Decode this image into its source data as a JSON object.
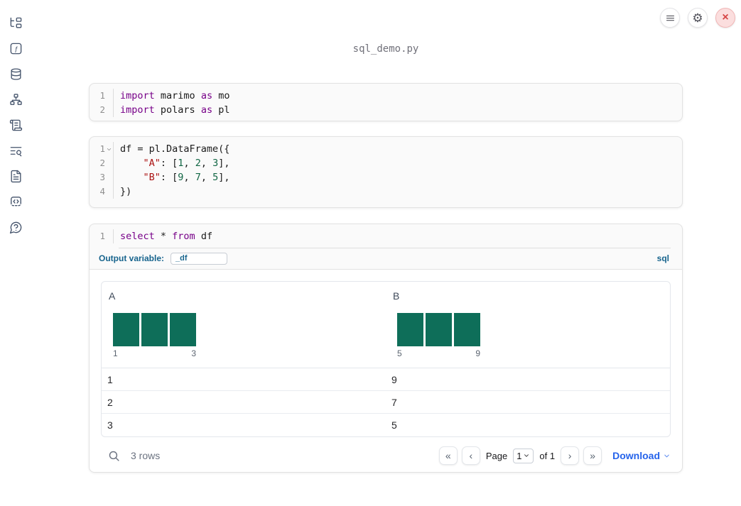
{
  "notebook": {
    "filename": "sql_demo.py"
  },
  "topbar": {
    "buttons": [
      {
        "name": "menu",
        "icon": "menu-icon"
      },
      {
        "name": "settings",
        "icon": "gear-icon"
      },
      {
        "name": "shutdown",
        "icon": "close-icon"
      }
    ]
  },
  "sidebar": {
    "items": [
      {
        "name": "file-explorer",
        "icon": "file-tree-icon"
      },
      {
        "name": "variables",
        "icon": "function-square-icon"
      },
      {
        "name": "data-sources",
        "icon": "database-icon"
      },
      {
        "name": "dependencies",
        "icon": "network-icon"
      },
      {
        "name": "scratchpad",
        "icon": "scroll-text-icon"
      },
      {
        "name": "logs",
        "icon": "text-search-icon"
      },
      {
        "name": "documentation",
        "icon": "file-text-icon"
      },
      {
        "name": "snippets",
        "icon": "code-box-icon"
      },
      {
        "name": "help",
        "icon": "help-bubble-icon"
      }
    ]
  },
  "cells": [
    {
      "type": "python",
      "gutter": [
        "1",
        "2"
      ],
      "fold_lines": [],
      "lines": [
        [
          [
            "kw",
            "import"
          ],
          [
            "pl",
            " marimo "
          ],
          [
            "kw",
            "as"
          ],
          [
            "pl",
            " mo"
          ]
        ],
        [
          [
            "kw",
            "import"
          ],
          [
            "pl",
            " polars "
          ],
          [
            "kw",
            "as"
          ],
          [
            "pl",
            " pl"
          ]
        ]
      ]
    },
    {
      "type": "python",
      "gutter": [
        "1",
        "2",
        "3",
        "4"
      ],
      "fold_lines": [
        0
      ],
      "lines": [
        [
          [
            "pl",
            "df = pl.DataFrame({"
          ]
        ],
        [
          [
            "pl",
            "    "
          ],
          [
            "str",
            "\"A\""
          ],
          [
            "pl",
            ": ["
          ],
          [
            "num",
            "1"
          ],
          [
            "pl",
            ", "
          ],
          [
            "num",
            "2"
          ],
          [
            "pl",
            ", "
          ],
          [
            "num",
            "3"
          ],
          [
            "pl",
            "],"
          ]
        ],
        [
          [
            "pl",
            "    "
          ],
          [
            "str",
            "\"B\""
          ],
          [
            "pl",
            ": ["
          ],
          [
            "num",
            "9"
          ],
          [
            "pl",
            ", "
          ],
          [
            "num",
            "7"
          ],
          [
            "pl",
            ", "
          ],
          [
            "num",
            "5"
          ],
          [
            "pl",
            "],"
          ]
        ],
        [
          [
            "pl",
            "})"
          ]
        ]
      ]
    },
    {
      "type": "sql",
      "gutter": [
        "1"
      ],
      "fold_lines": [],
      "lines": [
        [
          [
            "kw",
            "select"
          ],
          [
            "pl",
            " * "
          ],
          [
            "kw",
            "from"
          ],
          [
            "pl",
            " df"
          ]
        ]
      ],
      "output_variable_label": "Output variable:",
      "output_variable_value": "_df",
      "language_label": "sql"
    }
  ],
  "table": {
    "columns": [
      {
        "label": "A",
        "histogram": {
          "values": [
            1,
            1,
            1
          ],
          "min_label": "1",
          "max_label": "3"
        }
      },
      {
        "label": "B",
        "histogram": {
          "values": [
            1,
            1,
            1
          ],
          "min_label": "5",
          "max_label": "9"
        }
      }
    ],
    "rows": [
      [
        "1",
        "9"
      ],
      [
        "2",
        "7"
      ],
      [
        "3",
        "5"
      ]
    ],
    "footer": {
      "row_count": "3 rows",
      "page_label": "Page",
      "page_value": "1",
      "of_label": "of 1",
      "download_label": "Download"
    }
  },
  "chart_data": [
    {
      "type": "bar",
      "title": "Column A summary histogram",
      "categories": [
        "1",
        "2",
        "3"
      ],
      "values": [
        1,
        1,
        1
      ],
      "x_axis_labels": [
        "1",
        "3"
      ],
      "bar_color": "#0e6e59",
      "grid": false
    },
    {
      "type": "bar",
      "title": "Column B summary histogram",
      "categories": [
        "5",
        "7",
        "9"
      ],
      "values": [
        1,
        1,
        1
      ],
      "x_axis_labels": [
        "5",
        "9"
      ],
      "bar_color": "#0e6e59",
      "grid": false
    }
  ],
  "colors": {
    "histogram_bar": "#0e6e59",
    "accent_blue": "#2563eb",
    "sql_label_blue": "#17648d",
    "code_keyword": "#770088",
    "code_string": "#aa1111",
    "code_number": "#116644",
    "close_button_red": "#d64545"
  }
}
